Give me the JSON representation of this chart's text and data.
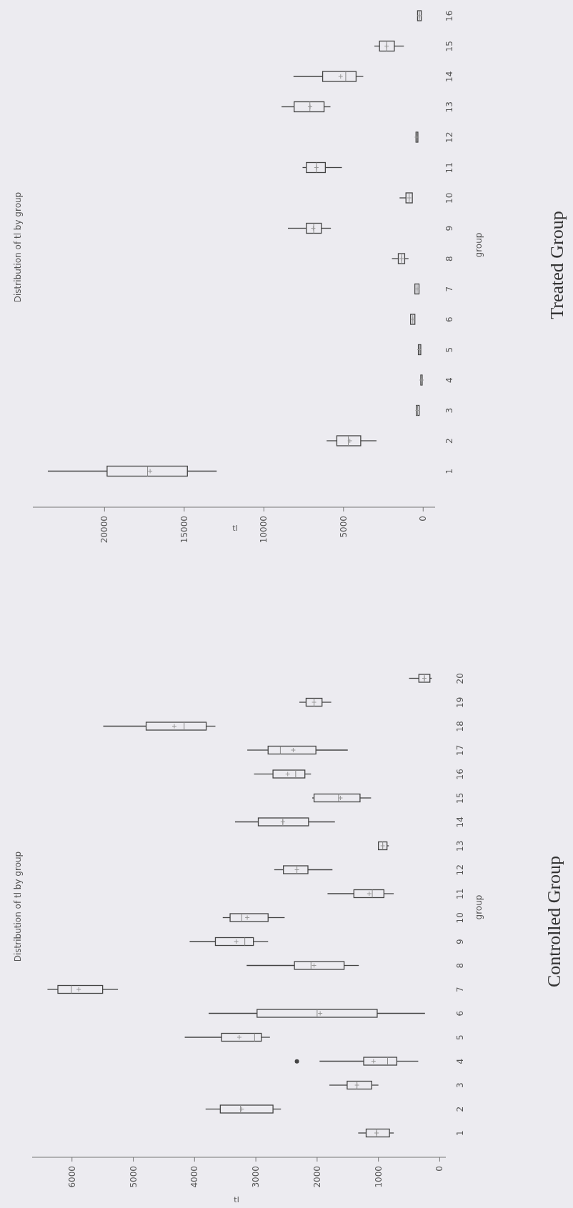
{
  "chart_data": [
    {
      "type": "box",
      "orientation": "horizontal",
      "title": "Distribution of tl by group",
      "xlabel": "tl",
      "ylabel": "group",
      "color": "#444444",
      "annotations": [
        "Controlled Group"
      ],
      "categories": [
        "20",
        "19",
        "18",
        "17",
        "16",
        "15",
        "14",
        "13",
        "12",
        "11",
        "10",
        "9",
        "8",
        "7",
        "6",
        "5",
        "4",
        "3",
        "2",
        "1"
      ],
      "xlim": [
        6650,
        -100
      ],
      "xticks": [
        0,
        1000,
        2000,
        3000,
        4000,
        5000,
        6000
      ],
      "boxes": [
        {
          "low": 130,
          "q1": 160,
          "median": 250,
          "q3": 340,
          "high": 500,
          "mean": 250
        },
        {
          "low": 1770,
          "q1": 1920,
          "median": 2050,
          "q3": 2180,
          "high": 2290,
          "mean": 2050
        },
        {
          "low": 3660,
          "q1": 3810,
          "median": 4170,
          "q3": 4790,
          "high": 5490,
          "mean": 4330
        },
        {
          "low": 1500,
          "q1": 2020,
          "median": 2600,
          "q3": 2800,
          "high": 3140,
          "mean": 2390
        },
        {
          "low": 2100,
          "q1": 2200,
          "median": 2350,
          "q3": 2720,
          "high": 3030,
          "mean": 2480
        },
        {
          "low": 1120,
          "q1": 1300,
          "median": 1650,
          "q3": 2050,
          "high": 2080,
          "mean": 1620
        },
        {
          "low": 1710,
          "q1": 2140,
          "median": 2560,
          "q3": 2960,
          "high": 3340,
          "mean": 2560
        },
        {
          "low": 830,
          "q1": 860,
          "median": 930,
          "q3": 1000,
          "high": 1020,
          "mean": 930
        },
        {
          "low": 1750,
          "q1": 2150,
          "median": 2330,
          "q3": 2550,
          "high": 2700,
          "mean": 2330
        },
        {
          "low": 750,
          "q1": 910,
          "median": 1100,
          "q3": 1400,
          "high": 1830,
          "mean": 1150
        },
        {
          "low": 2530,
          "q1": 2800,
          "median": 3230,
          "q3": 3420,
          "high": 3540,
          "mean": 3140
        },
        {
          "low": 2800,
          "q1": 3040,
          "median": 3180,
          "q3": 3660,
          "high": 4080,
          "mean": 3320
        },
        {
          "low": 1320,
          "q1": 1560,
          "median": 2100,
          "q3": 2370,
          "high": 3150,
          "mean": 2050
        },
        {
          "low": 5250,
          "q1": 5500,
          "median": 6010,
          "q3": 6230,
          "high": 6400,
          "mean": 5890
        },
        {
          "low": 240,
          "q1": 1020,
          "median": 2000,
          "q3": 2980,
          "high": 3770,
          "mean": 1950
        },
        {
          "low": 2770,
          "q1": 2910,
          "median": 3020,
          "q3": 3560,
          "high": 4160,
          "mean": 3270
        },
        {
          "low": 350,
          "q1": 700,
          "median": 850,
          "q3": 1240,
          "high": 1960,
          "mean": 1080,
          "outliers": [
            2330
          ]
        },
        {
          "low": 1000,
          "q1": 1110,
          "median": 1350,
          "q3": 1510,
          "high": 1800,
          "mean": 1350
        },
        {
          "low": 2590,
          "q1": 2720,
          "median": 3250,
          "q3": 3580,
          "high": 3820,
          "mean": 3230
        },
        {
          "low": 750,
          "q1": 820,
          "median": 1030,
          "q3": 1200,
          "high": 1330,
          "mean": 1030
        }
      ]
    },
    {
      "type": "box",
      "orientation": "horizontal",
      "title": "Distribution of tl by group",
      "xlabel": "tl",
      "ylabel": "group",
      "color": "#444444",
      "annotations": [
        "Treated Group"
      ],
      "categories": [
        "16",
        "15",
        "14",
        "13",
        "12",
        "11",
        "10",
        "9",
        "8",
        "7",
        "6",
        "5",
        "4",
        "3",
        "2",
        "1"
      ],
      "xlim": [
        24500,
        -750
      ],
      "xticks": [
        0,
        5000,
        10000,
        15000,
        20000
      ],
      "boxes": [
        {
          "low": 100,
          "q1": 120,
          "median": 230,
          "q3": 350,
          "high": 380,
          "mean": 230
        },
        {
          "low": 1210,
          "q1": 1810,
          "median": 2290,
          "q3": 2740,
          "high": 3060,
          "mean": 2290
        },
        {
          "low": 3760,
          "q1": 4210,
          "median": 4860,
          "q3": 6310,
          "high": 8140,
          "mean": 5180
        },
        {
          "low": 5820,
          "q1": 6220,
          "median": 7110,
          "q3": 8100,
          "high": 8890,
          "mean": 7100
        },
        {
          "low": 270,
          "q1": 330,
          "median": 400,
          "q3": 450,
          "high": 520,
          "mean": 400
        },
        {
          "low": 5100,
          "q1": 6140,
          "median": 6700,
          "q3": 7330,
          "high": 7570,
          "mean": 6700
        },
        {
          "low": 600,
          "q1": 680,
          "median": 880,
          "q3": 1080,
          "high": 1480,
          "mean": 880
        },
        {
          "low": 5790,
          "q1": 6390,
          "median": 6870,
          "q3": 7330,
          "high": 8490,
          "mean": 6900
        },
        {
          "low": 920,
          "q1": 1160,
          "median": 1350,
          "q3": 1560,
          "high": 1960,
          "mean": 1350
        },
        {
          "low": 250,
          "q1": 260,
          "median": 380,
          "q3": 520,
          "high": 530,
          "mean": 380
        },
        {
          "low": 500,
          "q1": 520,
          "median": 650,
          "q3": 790,
          "high": 800,
          "mean": 650
        },
        {
          "low": 100,
          "q1": 150,
          "median": 230,
          "q3": 300,
          "high": 360,
          "mean": 230
        },
        {
          "low": 20,
          "q1": 60,
          "median": 100,
          "q3": 150,
          "high": 200,
          "mean": 100
        },
        {
          "low": 200,
          "q1": 250,
          "median": 350,
          "q3": 420,
          "high": 450,
          "mean": 350
        },
        {
          "low": 2930,
          "q1": 3920,
          "median": 4700,
          "q3": 5420,
          "high": 6060,
          "mean": 4600
        },
        {
          "low": 12960,
          "q1": 14800,
          "median": 17300,
          "q3": 19840,
          "high": 23560,
          "mean": 17140
        }
      ]
    }
  ]
}
